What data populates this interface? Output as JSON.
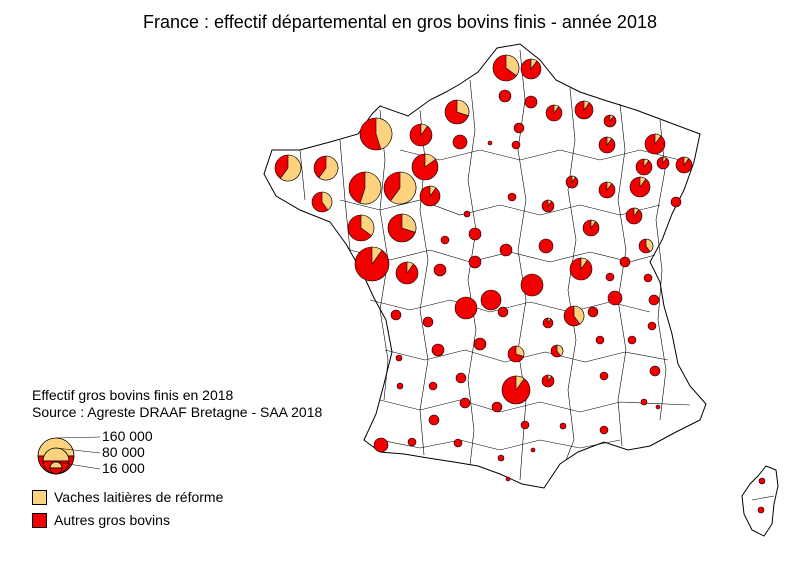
{
  "title": "France : effectif départemental en gros bovins finis - année 2018",
  "legend": {
    "heading": "Effectif gros bovins finis en 2018",
    "source": "Source : Agreste DRAAF Bretagne - SAA 2018",
    "size_levels": [
      "160 000",
      "80 000",
      "16 000"
    ],
    "categories": [
      {
        "label": "Vaches laitières de réforme",
        "color": "#fcd27f"
      },
      {
        "label": "Autres gros bovins",
        "color": "#f20000"
      }
    ]
  },
  "colors": {
    "dairy_cull_cows": "#fcd27f",
    "other_cattle": "#f20000",
    "boundary": "#000000"
  },
  "map_symbols": "proportional pie charts per département"
}
